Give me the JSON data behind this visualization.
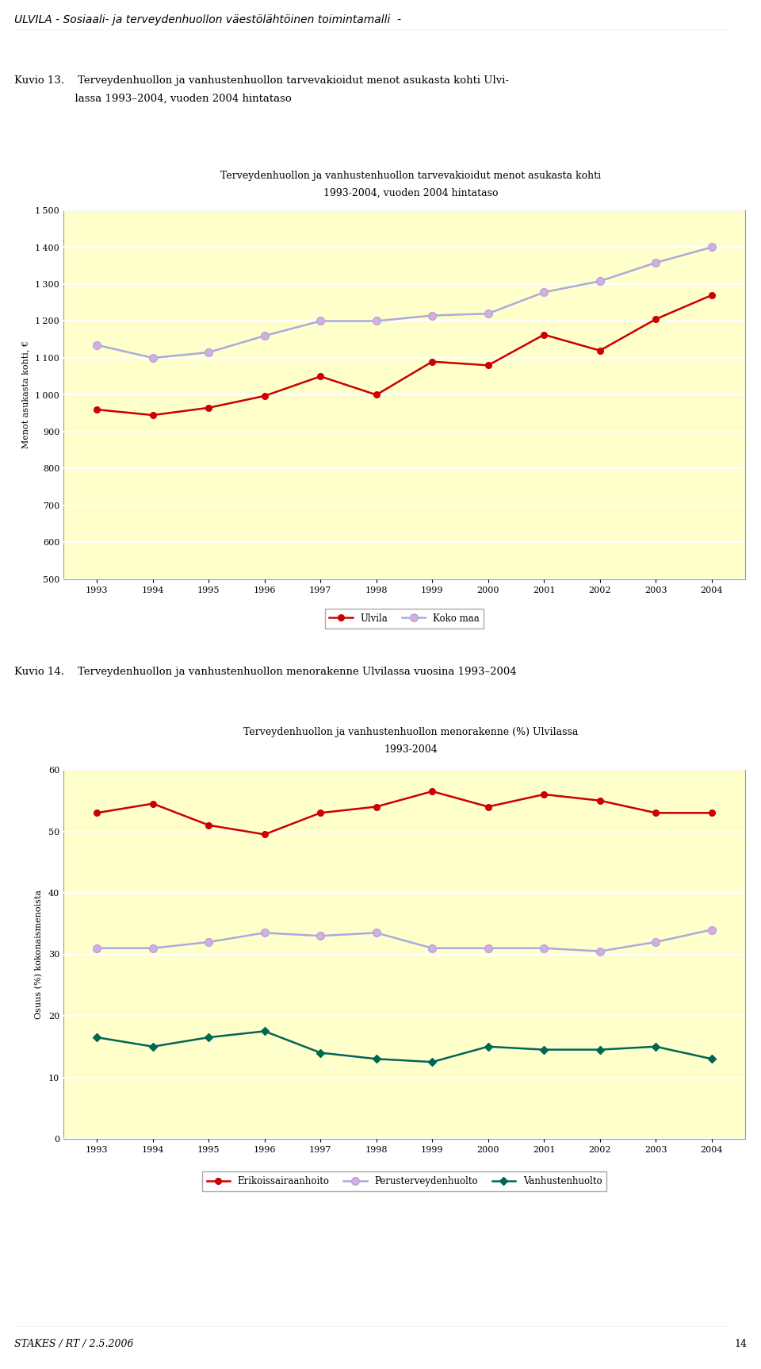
{
  "page_header": "ULVILA - Sosiaali- ja terveydenhuollon väestölähtöinen toimintamalli  -",
  "kuvio13_caption_line1": "Kuvio 13.    Terveydenhuollon ja vanhustenhuollon tarvevakioidut menot asukasta kohti Ulvi-",
  "kuvio13_caption_line2": "                  lassa 1993–2004, vuoden 2004 hintataso",
  "kuvio13_title_line1": "Terveydenhuollon ja vanhustenhuollon tarvevakioidut menot asukasta kohti",
  "kuvio13_title_line2": "1993-2004, vuoden 2004 hintataso",
  "kuvio13_ylabel": "Menot asukasta kohti, €",
  "kuvio13_years": [
    1993,
    1994,
    1995,
    1996,
    1997,
    1998,
    1999,
    2000,
    2001,
    2002,
    2003,
    2004
  ],
  "kuvio13_ulvila": [
    960,
    945,
    965,
    997,
    1050,
    1000,
    1090,
    1080,
    1163,
    1120,
    1205,
    1270
  ],
  "kuvio13_kokomaa": [
    1135,
    1100,
    1115,
    1160,
    1200,
    1200,
    1215,
    1220,
    1278,
    1308,
    1358,
    1400
  ],
  "kuvio13_ylim": [
    500,
    1500
  ],
  "kuvio13_yticks": [
    500,
    600,
    700,
    800,
    900,
    1000,
    1100,
    1200,
    1300,
    1400,
    1500
  ],
  "kuvio13_ulvila_color": "#cc0000",
  "kuvio13_kokomaa_color": "#aaaadd",
  "kuvio13_legend_ulvila": "Ulvila",
  "kuvio13_legend_kokomaa": "Koko maa",
  "kuvio14_caption": "Kuvio 14.    Terveydenhuollon ja vanhustenhuollon menorakenne Ulvilassa vuosina 1993–2004",
  "kuvio14_title_line1": "Terveydenhuollon ja vanhustenhuollon menorakenne (%) Ulvilassa",
  "kuvio14_title_line2": "1993-2004",
  "kuvio14_ylabel": "Osuus (%) kokonaismenoista",
  "kuvio14_years": [
    1993,
    1994,
    1995,
    1996,
    1997,
    1998,
    1999,
    2000,
    2001,
    2002,
    2003,
    2004
  ],
  "kuvio14_erikois": [
    53,
    54.5,
    51,
    49.5,
    53,
    54,
    56.5,
    54,
    56,
    55,
    53,
    53
  ],
  "kuvio14_peruster": [
    31,
    31,
    32,
    33.5,
    33,
    33.5,
    31,
    31,
    31,
    30.5,
    32,
    34
  ],
  "kuvio14_vanhus": [
    16.5,
    15,
    16.5,
    17.5,
    14,
    13,
    12.5,
    15,
    14.5,
    14.5,
    15,
    13
  ],
  "kuvio14_ylim": [
    0,
    60
  ],
  "kuvio14_yticks": [
    0,
    10,
    20,
    30,
    40,
    50,
    60
  ],
  "kuvio14_erikois_color": "#cc0000",
  "kuvio14_peruster_color": "#aaaadd",
  "kuvio14_vanhus_color": "#006655",
  "kuvio14_legend_erikois": "Erikoissairaanhoito",
  "kuvio14_legend_peruster": "Perusterveydenhuolto",
  "kuvio14_legend_vanhus": "Vanhustenhuolto",
  "bg_color": "#ffffcc",
  "page_bg": "#ffffff",
  "footer": "STAKES / RT / 2.5.2006",
  "page_number": "14"
}
